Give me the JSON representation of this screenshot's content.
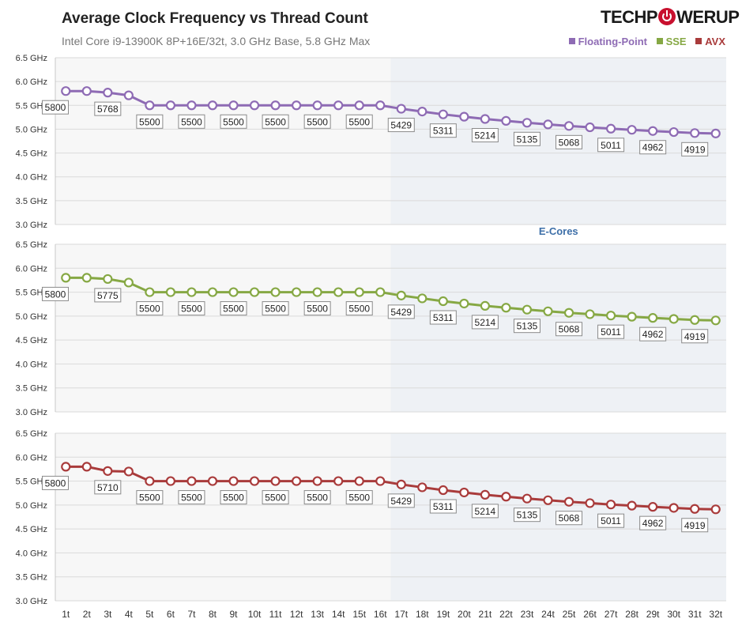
{
  "chart_data": {
    "type": "line",
    "title": "Average Clock Frequency vs Thread Count",
    "subtitle": "Intel Core i9-13900K 8P+16E/32t, 3.0 GHz Base, 5.8 GHz Max",
    "categories": [
      "1t",
      "2t",
      "3t",
      "4t",
      "5t",
      "6t",
      "7t",
      "8t",
      "9t",
      "10t",
      "11t",
      "12t",
      "13t",
      "14t",
      "15t",
      "16t",
      "17t",
      "18t",
      "19t",
      "20t",
      "21t",
      "22t",
      "23t",
      "24t",
      "25t",
      "26t",
      "27t",
      "28t",
      "29t",
      "30t",
      "31t",
      "32t"
    ],
    "y_ticks": [
      "3.0 GHz",
      "3.5 GHz",
      "4.0 GHz",
      "4.5 GHz",
      "5.0 GHz",
      "5.5 GHz",
      "6.0 GHz",
      "6.5 GHz"
    ],
    "ylim": [
      3000,
      6500
    ],
    "region_label": "E-Cores",
    "grid": true,
    "legend_position": "top-right",
    "series": [
      {
        "name": "Floating-Point",
        "color": "#8e6bb4",
        "values": [
          5800,
          5800,
          5768,
          5710,
          5500,
          5500,
          5500,
          5500,
          5500,
          5500,
          5500,
          5500,
          5500,
          5500,
          5500,
          5500,
          5429,
          5370,
          5311,
          5262,
          5214,
          5175,
          5135,
          5100,
          5068,
          5040,
          5011,
          4987,
          4962,
          4940,
          4919,
          4910
        ],
        "labels": [
          {
            "i": 0,
            "text": "5800"
          },
          {
            "i": 2,
            "text": "5768"
          },
          {
            "i": 4,
            "text": "5500"
          },
          {
            "i": 6,
            "text": "5500"
          },
          {
            "i": 8,
            "text": "5500"
          },
          {
            "i": 10,
            "text": "5500"
          },
          {
            "i": 12,
            "text": "5500"
          },
          {
            "i": 14,
            "text": "5500"
          },
          {
            "i": 16,
            "text": "5429"
          },
          {
            "i": 18,
            "text": "5311"
          },
          {
            "i": 20,
            "text": "5214"
          },
          {
            "i": 22,
            "text": "5135"
          },
          {
            "i": 24,
            "text": "5068"
          },
          {
            "i": 26,
            "text": "5011"
          },
          {
            "i": 28,
            "text": "4962"
          },
          {
            "i": 30,
            "text": "4919"
          }
        ]
      },
      {
        "name": "SSE",
        "color": "#86a844",
        "values": [
          5800,
          5800,
          5775,
          5700,
          5500,
          5500,
          5500,
          5500,
          5500,
          5500,
          5500,
          5500,
          5500,
          5500,
          5500,
          5500,
          5429,
          5370,
          5311,
          5262,
          5214,
          5175,
          5135,
          5100,
          5068,
          5040,
          5011,
          4987,
          4962,
          4940,
          4919,
          4910
        ],
        "labels": [
          {
            "i": 0,
            "text": "5800"
          },
          {
            "i": 2,
            "text": "5775"
          },
          {
            "i": 4,
            "text": "5500"
          },
          {
            "i": 6,
            "text": "5500"
          },
          {
            "i": 8,
            "text": "5500"
          },
          {
            "i": 10,
            "text": "5500"
          },
          {
            "i": 12,
            "text": "5500"
          },
          {
            "i": 14,
            "text": "5500"
          },
          {
            "i": 16,
            "text": "5429"
          },
          {
            "i": 18,
            "text": "5311"
          },
          {
            "i": 20,
            "text": "5214"
          },
          {
            "i": 22,
            "text": "5135"
          },
          {
            "i": 24,
            "text": "5068"
          },
          {
            "i": 26,
            "text": "5011"
          },
          {
            "i": 28,
            "text": "4962"
          },
          {
            "i": 30,
            "text": "4919"
          }
        ]
      },
      {
        "name": "AVX",
        "color": "#a93b3b",
        "values": [
          5800,
          5800,
          5710,
          5700,
          5500,
          5500,
          5500,
          5500,
          5500,
          5500,
          5500,
          5500,
          5500,
          5500,
          5500,
          5500,
          5429,
          5370,
          5311,
          5262,
          5214,
          5175,
          5135,
          5100,
          5068,
          5040,
          5011,
          4987,
          4962,
          4940,
          4919,
          4910
        ],
        "labels": [
          {
            "i": 0,
            "text": "5800"
          },
          {
            "i": 2,
            "text": "5710"
          },
          {
            "i": 4,
            "text": "5500"
          },
          {
            "i": 6,
            "text": "5500"
          },
          {
            "i": 8,
            "text": "5500"
          },
          {
            "i": 10,
            "text": "5500"
          },
          {
            "i": 12,
            "text": "5500"
          },
          {
            "i": 14,
            "text": "5500"
          },
          {
            "i": 16,
            "text": "5429"
          },
          {
            "i": 18,
            "text": "5311"
          },
          {
            "i": 20,
            "text": "5214"
          },
          {
            "i": 22,
            "text": "5135"
          },
          {
            "i": 24,
            "text": "5068"
          },
          {
            "i": 26,
            "text": "5011"
          },
          {
            "i": 28,
            "text": "4962"
          },
          {
            "i": 30,
            "text": "4919"
          }
        ]
      }
    ]
  },
  "brand": {
    "logo_left": "TECHP",
    "logo_right": "WERUP",
    "logo_icon": "power-icon",
    "accent": "#c8102e"
  }
}
